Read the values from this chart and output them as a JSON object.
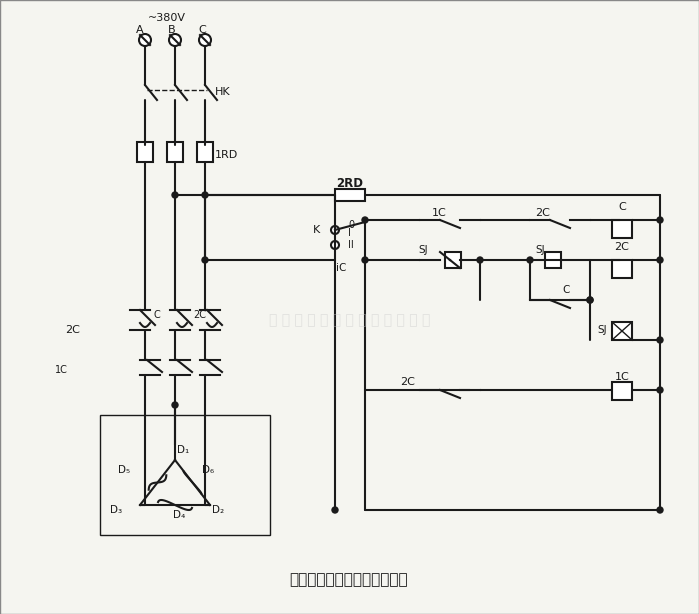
{
  "title": "双速电动机自动加速控制线路",
  "title_fontsize": 11,
  "bg_color": "#f5f5f0",
  "line_color": "#1a1a1a",
  "text_color": "#1a1a1a",
  "watermark_text": "新 乡 市 安 康 起 重 机 械 有 限 公 司",
  "watermark_color": "#cccccc",
  "supply_label": "~380V",
  "phase_labels": [
    "A",
    "B",
    "C"
  ],
  "fuse_label_1": "1RD",
  "fuse_label_2": "2RD",
  "switch_label": "HK",
  "component_labels": [
    "1C",
    "2C",
    "SJ",
    "C",
    "K"
  ]
}
